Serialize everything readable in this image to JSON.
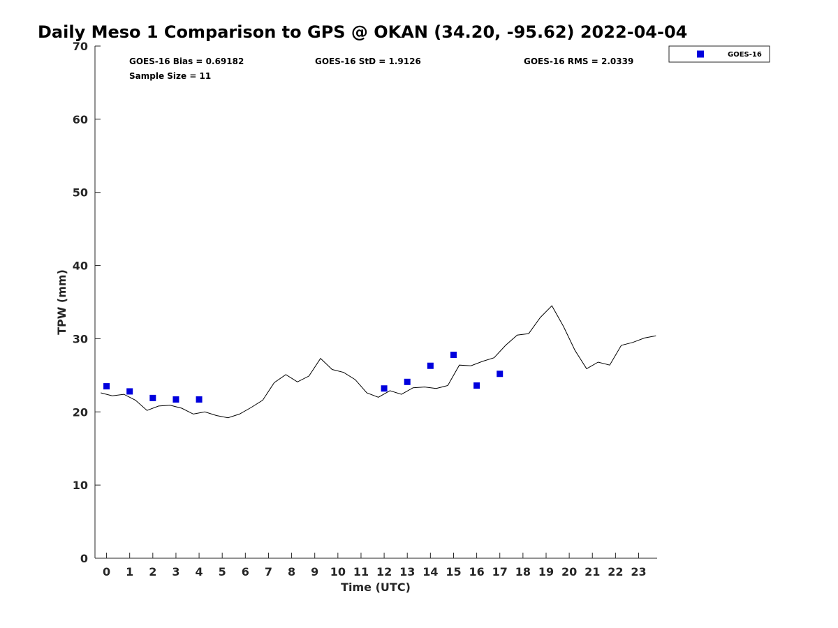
{
  "colors": {
    "goes": "#0000dd",
    "gps_line": "#000000",
    "axis": "#262626"
  },
  "chart_data": {
    "type": "line",
    "title": "Daily Meso 1 Comparison to GPS @ OKAN (34.20, -95.62) 2022-04-04",
    "xlabel": "Time (UTC)",
    "ylabel": "TPW (mm)",
    "xlim": [
      -0.5,
      23.8
    ],
    "ylim": [
      0,
      70
    ],
    "xticks": [
      0,
      1,
      2,
      3,
      4,
      5,
      6,
      7,
      8,
      9,
      10,
      11,
      12,
      13,
      14,
      15,
      16,
      17,
      18,
      19,
      20,
      21,
      22,
      23
    ],
    "yticks": [
      0,
      10,
      20,
      30,
      40,
      50,
      60,
      70
    ],
    "stats": {
      "bias": "GOES-16 Bias = 0.69182",
      "std": "GOES-16 StD = 1.9126",
      "rms": "GOES-16 RMS = 2.0339",
      "sample_size": "Sample Size = 11"
    },
    "legend": {
      "label": "GOES-16",
      "position": "top-right"
    },
    "series": [
      {
        "kind": "line",
        "x": [
          -0.25,
          0.25,
          0.75,
          1.25,
          1.75,
          2.25,
          2.75,
          3.25,
          3.75,
          4.25,
          4.75,
          5.25,
          5.75,
          6.25,
          6.75,
          7.25,
          7.75,
          8.25,
          8.75,
          9.25,
          9.75,
          10.25,
          10.75,
          11.25,
          11.75,
          12.25,
          12.75,
          13.25,
          13.75,
          14.25,
          14.75,
          15.25,
          15.75,
          16.25,
          16.75,
          17.25,
          17.75,
          18.25,
          18.75,
          19.25,
          19.75,
          20.25,
          20.75,
          21.25,
          21.75,
          22.25,
          22.75,
          23.25,
          23.75
        ],
        "y": [
          22.6,
          22.2,
          22.4,
          21.6,
          20.2,
          20.8,
          20.9,
          20.5,
          19.7,
          20.0,
          19.5,
          19.2,
          19.7,
          20.6,
          21.6,
          24.0,
          25.1,
          24.1,
          24.9,
          27.3,
          25.8,
          25.4,
          24.4,
          22.6,
          22.0,
          22.9,
          22.4,
          23.3,
          23.4,
          23.2,
          23.6,
          26.4,
          26.3,
          26.9,
          27.4,
          29.1,
          30.5,
          30.7,
          32.9,
          34.5,
          31.7,
          28.4,
          25.9,
          26.8,
          26.4,
          29.1,
          29.5,
          30.1,
          30.4
        ]
      },
      {
        "kind": "scatter",
        "name": "GOES-16",
        "x": [
          0,
          1,
          2,
          3,
          4,
          12,
          13,
          14,
          15,
          16,
          17
        ],
        "y": [
          23.5,
          22.8,
          21.9,
          21.7,
          21.7,
          23.2,
          24.1,
          26.3,
          27.8,
          23.6,
          25.2
        ]
      }
    ]
  }
}
